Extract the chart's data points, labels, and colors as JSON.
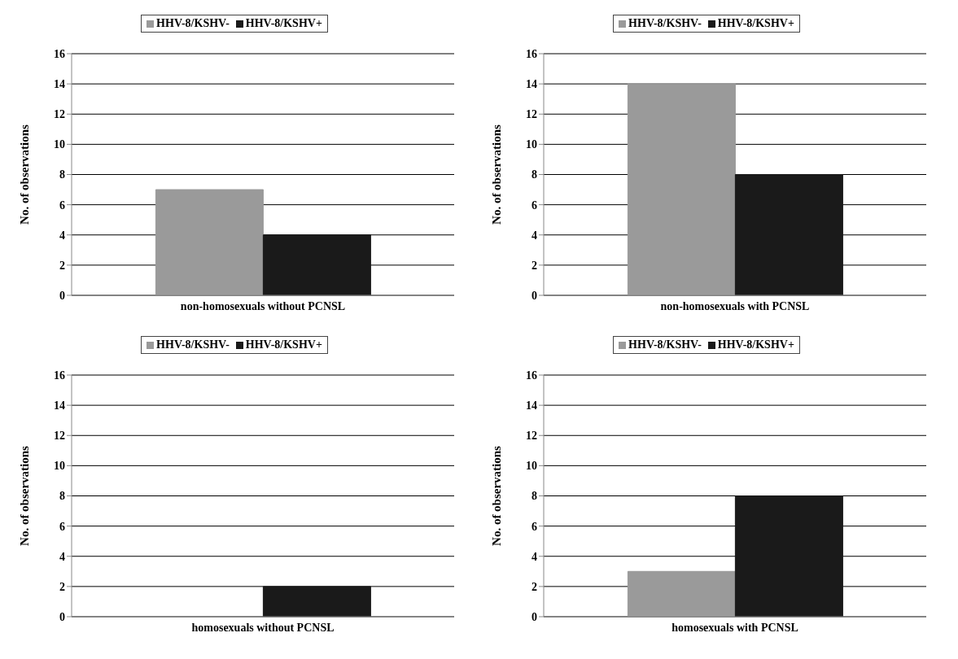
{
  "chart_data": [
    {
      "type": "bar",
      "categories": [
        "non-homosexuals without PCNSL"
      ],
      "ylabel": "No. of observations",
      "series": [
        {
          "name": "HHV-8/KSHV-",
          "color": "#9a9a9a",
          "values": [
            7
          ]
        },
        {
          "name": "HHV-8/KSHV+",
          "color": "#1a1a1a",
          "values": [
            4
          ]
        }
      ],
      "ylim": [
        0,
        16
      ],
      "yticks": [
        0,
        2,
        4,
        6,
        8,
        10,
        12,
        14,
        16
      ],
      "grid": "y",
      "legend": "top"
    },
    {
      "type": "bar",
      "categories": [
        "non-homosexuals with PCNSL"
      ],
      "ylabel": "No. of observations",
      "series": [
        {
          "name": "HHV-8/KSHV-",
          "color": "#9a9a9a",
          "values": [
            14
          ]
        },
        {
          "name": "HHV-8/KSHV+",
          "color": "#1a1a1a",
          "values": [
            8
          ]
        }
      ],
      "ylim": [
        0,
        16
      ],
      "yticks": [
        0,
        2,
        4,
        6,
        8,
        10,
        12,
        14,
        16
      ],
      "grid": "y",
      "legend": "top"
    },
    {
      "type": "bar",
      "categories": [
        "homosexuals without PCNSL"
      ],
      "ylabel": "No. of observations",
      "series": [
        {
          "name": "HHV-8/KSHV-",
          "color": "#9a9a9a",
          "values": [
            0
          ]
        },
        {
          "name": "HHV-8/KSHV+",
          "color": "#1a1a1a",
          "values": [
            2
          ]
        }
      ],
      "ylim": [
        0,
        16
      ],
      "yticks": [
        0,
        2,
        4,
        6,
        8,
        10,
        12,
        14,
        16
      ],
      "grid": "y",
      "legend": "top"
    },
    {
      "type": "bar",
      "categories": [
        "homosexuals with PCNSL"
      ],
      "ylabel": "No. of observations",
      "series": [
        {
          "name": "HHV-8/KSHV-",
          "color": "#9a9a9a",
          "values": [
            3
          ]
        },
        {
          "name": "HHV-8/KSHV+",
          "color": "#1a1a1a",
          "values": [
            8
          ]
        }
      ],
      "ylim": [
        0,
        16
      ],
      "yticks": [
        0,
        2,
        4,
        6,
        8,
        10,
        12,
        14,
        16
      ],
      "grid": "y",
      "legend": "top"
    }
  ]
}
